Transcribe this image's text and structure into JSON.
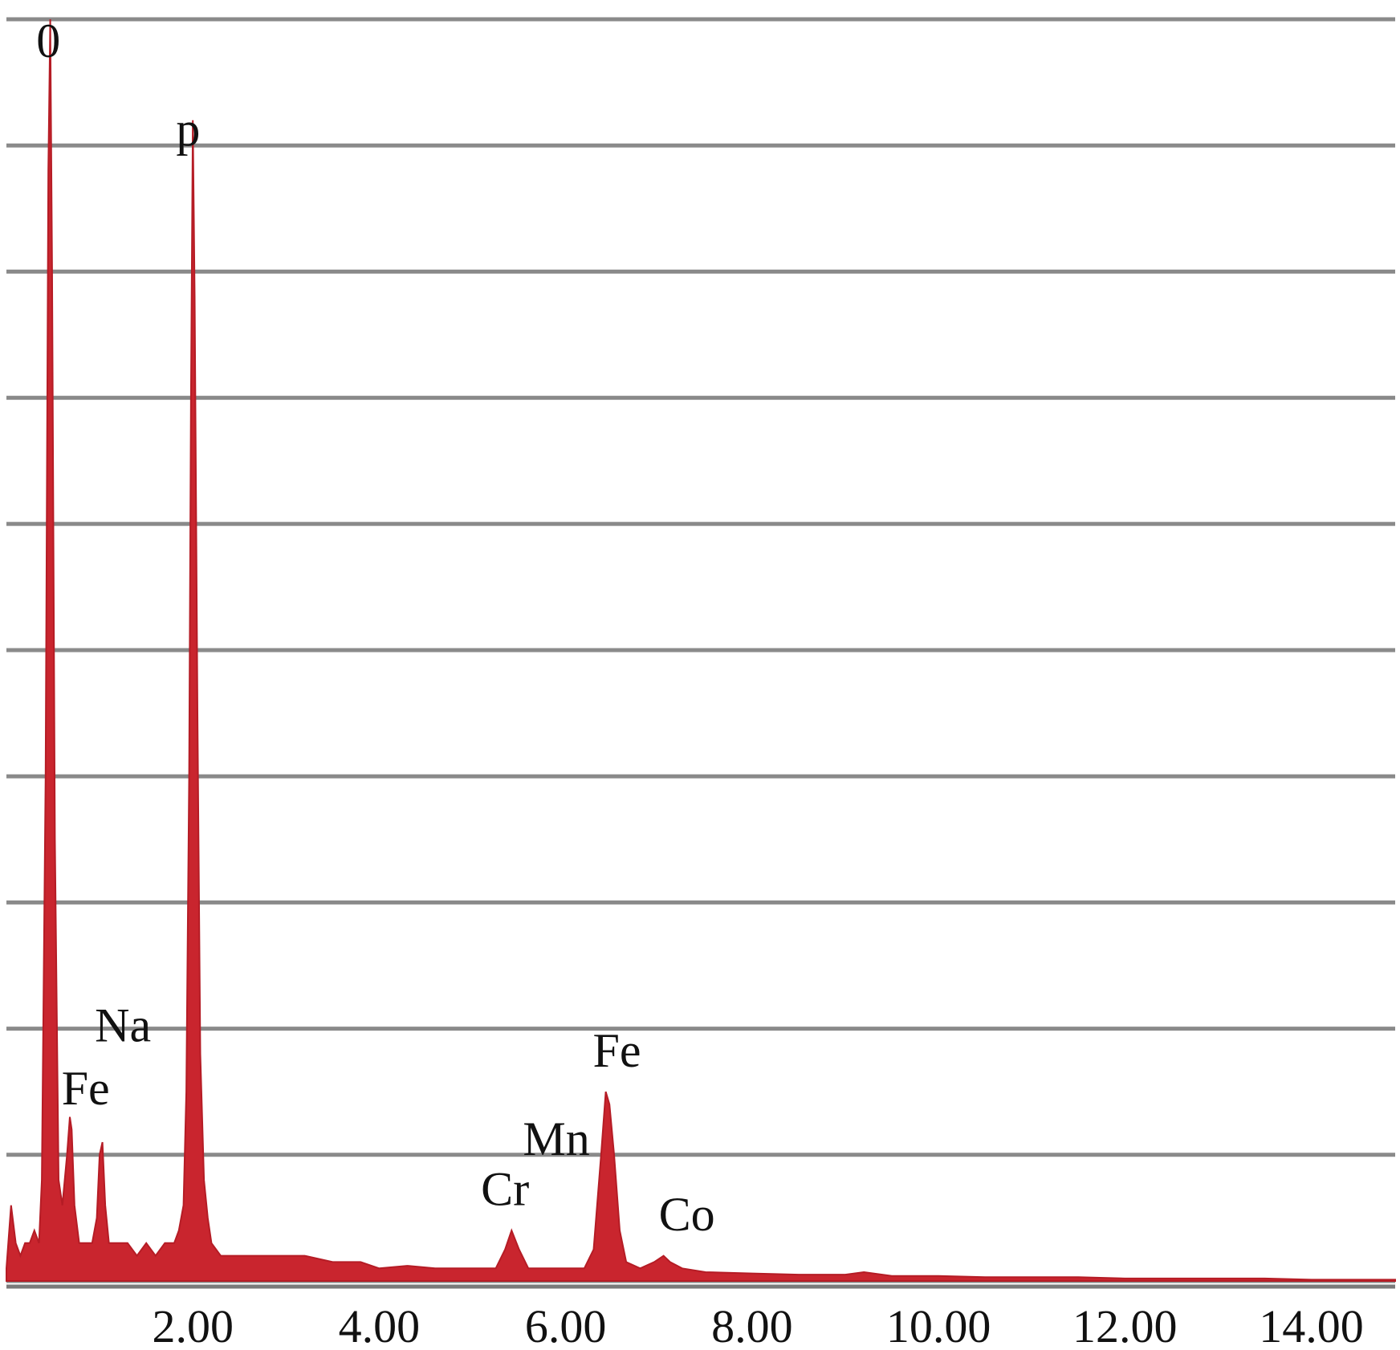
{
  "chart_data": {
    "type": "area",
    "title": "",
    "xlabel": "",
    "ylabel": "",
    "xlim": [
      0.0,
      14.9
    ],
    "ylim": [
      0,
      100
    ],
    "grid": true,
    "x_ticks": [
      2,
      4,
      6,
      8,
      10,
      12,
      14
    ],
    "x_tick_labels": [
      "2.00",
      "4.00",
      "6.00",
      "8.00",
      "10.00",
      "12.00",
      "14.00"
    ],
    "colors": {
      "spectrum": "#c9252e",
      "grid": "#8a8a8a"
    },
    "peak_labels": [
      {
        "text": "0",
        "x": 0.45,
        "y": 97
      },
      {
        "text": "p",
        "x": 1.95,
        "y": 90
      },
      {
        "text": "Na",
        "x": 1.25,
        "y": 19
      },
      {
        "text": "Fe",
        "x": 0.85,
        "y": 14
      },
      {
        "text": "Cr",
        "x": 5.35,
        "y": 6
      },
      {
        "text": "Mn",
        "x": 5.9,
        "y": 10
      },
      {
        "text": "Fe",
        "x": 6.55,
        "y": 17
      },
      {
        "text": "Co",
        "x": 7.3,
        "y": 4
      }
    ],
    "series": [
      {
        "values": [
          [
            0.0,
            1
          ],
          [
            0.05,
            6
          ],
          [
            0.1,
            3
          ],
          [
            0.15,
            2
          ],
          [
            0.2,
            3
          ],
          [
            0.25,
            3
          ],
          [
            0.3,
            4
          ],
          [
            0.35,
            3
          ],
          [
            0.38,
            8
          ],
          [
            0.42,
            40
          ],
          [
            0.45,
            88
          ],
          [
            0.47,
            100
          ],
          [
            0.49,
            80
          ],
          [
            0.52,
            35
          ],
          [
            0.56,
            8
          ],
          [
            0.6,
            6
          ],
          [
            0.65,
            10
          ],
          [
            0.68,
            13
          ],
          [
            0.7,
            12
          ],
          [
            0.73,
            6
          ],
          [
            0.78,
            3
          ],
          [
            0.85,
            3
          ],
          [
            0.92,
            3
          ],
          [
            0.97,
            5
          ],
          [
            1.0,
            10
          ],
          [
            1.03,
            11
          ],
          [
            1.06,
            6
          ],
          [
            1.1,
            3
          ],
          [
            1.2,
            3
          ],
          [
            1.3,
            3
          ],
          [
            1.4,
            2
          ],
          [
            1.5,
            3
          ],
          [
            1.6,
            2
          ],
          [
            1.7,
            3
          ],
          [
            1.8,
            3
          ],
          [
            1.85,
            4
          ],
          [
            1.9,
            6
          ],
          [
            1.93,
            15
          ],
          [
            1.96,
            40
          ],
          [
            1.98,
            70
          ],
          [
            2.0,
            92
          ],
          [
            2.02,
            78
          ],
          [
            2.05,
            45
          ],
          [
            2.08,
            18
          ],
          [
            2.12,
            8
          ],
          [
            2.16,
            5
          ],
          [
            2.2,
            3
          ],
          [
            2.3,
            2
          ],
          [
            2.5,
            2
          ],
          [
            2.7,
            2
          ],
          [
            3.0,
            2
          ],
          [
            3.2,
            2
          ],
          [
            3.5,
            1.5
          ],
          [
            3.8,
            1.5
          ],
          [
            4.0,
            1
          ],
          [
            4.3,
            1.2
          ],
          [
            4.6,
            1
          ],
          [
            5.0,
            1
          ],
          [
            5.25,
            1
          ],
          [
            5.35,
            2.5
          ],
          [
            5.42,
            4
          ],
          [
            5.5,
            2.5
          ],
          [
            5.6,
            1
          ],
          [
            5.8,
            1
          ],
          [
            6.0,
            1
          ],
          [
            6.2,
            1
          ],
          [
            6.3,
            2.5
          ],
          [
            6.38,
            10
          ],
          [
            6.43,
            15
          ],
          [
            6.47,
            14
          ],
          [
            6.52,
            10
          ],
          [
            6.58,
            4
          ],
          [
            6.65,
            1.5
          ],
          [
            6.8,
            1
          ],
          [
            6.95,
            1.5
          ],
          [
            7.05,
            2
          ],
          [
            7.12,
            1.5
          ],
          [
            7.25,
            1
          ],
          [
            7.5,
            0.7
          ],
          [
            8.0,
            0.6
          ],
          [
            8.5,
            0.5
          ],
          [
            9.0,
            0.5
          ],
          [
            9.2,
            0.7
          ],
          [
            9.5,
            0.4
          ],
          [
            10.0,
            0.4
          ],
          [
            10.5,
            0.3
          ],
          [
            11.0,
            0.3
          ],
          [
            11.5,
            0.3
          ],
          [
            12.0,
            0.2
          ],
          [
            12.5,
            0.2
          ],
          [
            13.0,
            0.2
          ],
          [
            13.5,
            0.2
          ],
          [
            14.0,
            0.1
          ],
          [
            14.5,
            0.1
          ],
          [
            14.9,
            0.1
          ]
        ]
      }
    ]
  }
}
